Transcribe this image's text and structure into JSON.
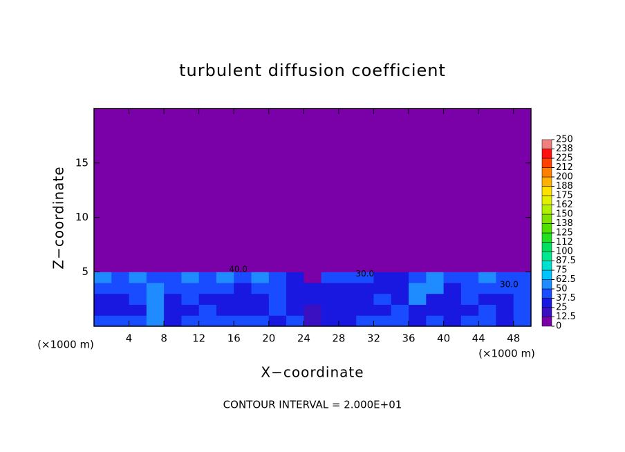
{
  "chart_data": {
    "type": "contour",
    "title": "turbulent diffusion coefficient",
    "x_label": "X−coordinate",
    "y_label": "Z−coordinate",
    "x_unit": "(×1000 m)",
    "y_unit": "(×1000 m)",
    "footnote": "CONTOUR INTERVAL = 2.000E+01",
    "xlim": [
      0,
      50
    ],
    "ylim": [
      0,
      20
    ],
    "xticks": [
      4,
      8,
      12,
      16,
      20,
      24,
      28,
      32,
      36,
      40,
      44,
      48
    ],
    "yticks": [
      5,
      10,
      15
    ],
    "x_edges": [
      0,
      2,
      4,
      6,
      8,
      10,
      12,
      14,
      16,
      18,
      20,
      22,
      24,
      26,
      28,
      30,
      32,
      34,
      36,
      38,
      40,
      42,
      44,
      46,
      48,
      50
    ],
    "z_edges": [
      0,
      1,
      2,
      3,
      4,
      5,
      6,
      20
    ],
    "z": [
      [
        45,
        40,
        40,
        55,
        35,
        45,
        40,
        40,
        45,
        40,
        35,
        40,
        15,
        30,
        35,
        40,
        45,
        40,
        30,
        40,
        35,
        40,
        40,
        35,
        40
      ],
      [
        35,
        30,
        35,
        55,
        30,
        30,
        40,
        35,
        30,
        35,
        40,
        30,
        15,
        30,
        25,
        30,
        35,
        40,
        30,
        35,
        30,
        30,
        40,
        35,
        40
      ],
      [
        30,
        30,
        40,
        55,
        30,
        45,
        30,
        30,
        30,
        35,
        45,
        30,
        25,
        30,
        30,
        30,
        40,
        35,
        50,
        30,
        30,
        45,
        35,
        30,
        45
      ],
      [
        45,
        40,
        45,
        50,
        45,
        45,
        40,
        40,
        35,
        40,
        45,
        30,
        35,
        30,
        25,
        30,
        35,
        35,
        55,
        50,
        30,
        45,
        40,
        45,
        40
      ],
      [
        50,
        45,
        50,
        45,
        40,
        50,
        45,
        50,
        45,
        50,
        40,
        30,
        10,
        40,
        45,
        40,
        35,
        30,
        40,
        55,
        45,
        40,
        50,
        45,
        40
      ],
      [
        5,
        5,
        5,
        5,
        5,
        5,
        5,
        10,
        5,
        5,
        5,
        5,
        5,
        5,
        5,
        10,
        5,
        5,
        5,
        5,
        5,
        5,
        5,
        5,
        5
      ],
      [
        0,
        0,
        0,
        0,
        0,
        0,
        0,
        0,
        0,
        0,
        0,
        0,
        0,
        0,
        0,
        0,
        0,
        0,
        0,
        0,
        0,
        0,
        0,
        0,
        0
      ]
    ],
    "colorbar": {
      "levels": [
        0,
        12.5,
        25,
        37.5,
        50,
        62.5,
        75,
        87.5,
        100,
        {
          "value": 112.5,
          "label": "112"
        },
        125,
        {
          "value": 137.5,
          "label": "138"
        },
        150,
        {
          "value": 162.5,
          "label": "162"
        },
        175,
        {
          "value": 187.5,
          "label": "188"
        },
        200,
        {
          "value": 212.5,
          "label": "212"
        },
        225,
        {
          "value": 237.5,
          "label": "238"
        },
        250
      ],
      "colors": [
        "#7a00a8",
        "#3a10c0",
        "#1818e0",
        "#1a4cff",
        "#1e8cff",
        "#00c4ff",
        "#00e0d0",
        "#00e890",
        "#00e060",
        "#20e020",
        "#50e000",
        "#80e000",
        "#b0f000",
        "#e0f000",
        "#ffe000",
        "#ffb000",
        "#ff8000",
        "#ff4000",
        "#ff1010",
        "#f08080"
      ]
    },
    "annotations": [
      {
        "text": "40.0",
        "x": 16.5,
        "y": 5.2
      },
      {
        "text": "30.0",
        "x": 31,
        "y": 4.8
      },
      {
        "text": "30.0",
        "x": 47.5,
        "y": 3.8
      }
    ]
  }
}
